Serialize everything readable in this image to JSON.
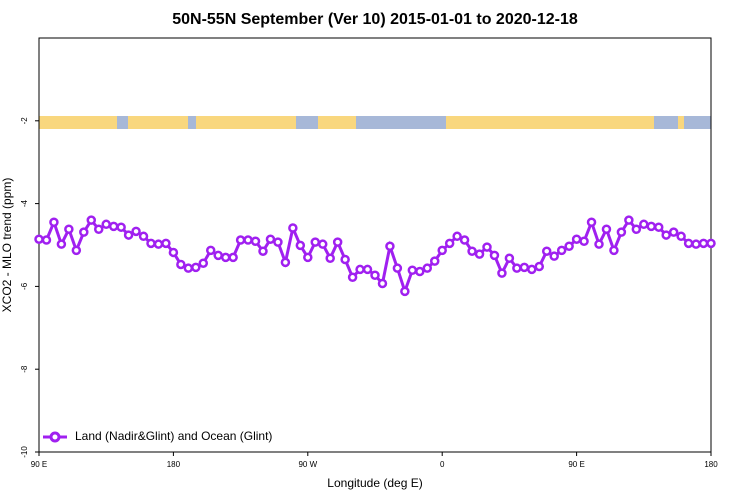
{
  "chart_data": {
    "type": "line",
    "title": "50N-55N September (Ver 10)   2015-01-01 to 2020-12-18",
    "x_label": "Longitude (deg E)",
    "y_label": "XCO2 - MLO trend (ppm)",
    "x": [
      90,
      95,
      100,
      105,
      110,
      115,
      120,
      125,
      130,
      135,
      140,
      145,
      150,
      155,
      160,
      165,
      170,
      175,
      180,
      185,
      190,
      195,
      200,
      205,
      210,
      215,
      220,
      225,
      230,
      235,
      240,
      245,
      250,
      255,
      260,
      265,
      270,
      275,
      280,
      285,
      290,
      295,
      300,
      305,
      310,
      315,
      320,
      325,
      330,
      335,
      340,
      345,
      350,
      355,
      360,
      365,
      370,
      375,
      380,
      385,
      390,
      395,
      400,
      405,
      410,
      415,
      420,
      425,
      430,
      435,
      440,
      445,
      450,
      455,
      460,
      465,
      470,
      475,
      480,
      485,
      490,
      495,
      500,
      505,
      510,
      515,
      520,
      525,
      530,
      535,
      540
    ],
    "series": [
      {
        "name": "Land (Nadir&Glint) and Ocean (Glint)",
        "color": "#a020f0",
        "values": [
          -4.86,
          -4.88,
          -4.45,
          -4.98,
          -4.62,
          -5.13,
          -4.69,
          -4.4,
          -4.62,
          -4.5,
          -4.55,
          -4.57,
          -4.76,
          -4.67,
          -4.79,
          -4.96,
          -4.98,
          -4.96,
          -5.18,
          -5.47,
          -5.56,
          -5.54,
          -5.44,
          -5.13,
          -5.25,
          -5.3,
          -5.3,
          -4.88,
          -4.88,
          -4.91,
          -5.15,
          -4.86,
          -4.93,
          -5.42,
          -4.59,
          -5.01,
          -5.3,
          -4.93,
          -4.98,
          -5.32,
          -4.93,
          -5.35,
          -5.78,
          -5.59,
          -5.59,
          -5.73,
          -5.93,
          -5.03,
          -5.56,
          -6.12,
          -5.61,
          -5.64,
          -5.56,
          -5.39,
          -5.13,
          -4.96,
          -4.79,
          -4.88,
          -5.15,
          -5.22,
          -5.05,
          -5.25,
          -5.68,
          -5.32,
          -5.56,
          -5.54,
          -5.59,
          -5.52,
          -5.15,
          -5.27,
          -5.13,
          -5.03,
          -4.86,
          -4.91,
          -4.45,
          -4.98,
          -4.62,
          -5.13,
          -4.69,
          -4.4,
          -4.62,
          -4.5,
          -4.55,
          -4.57,
          -4.76,
          -4.69,
          -4.79,
          -4.96,
          -4.98,
          -4.96,
          -4.96
        ]
      }
    ],
    "xlim": [
      90,
      540
    ],
    "xticks": [
      {
        "value": 90,
        "label": "90 E"
      },
      180,
      {
        "value": 270,
        "label": "90 W"
      },
      {
        "value": 360,
        "label": "0"
      },
      {
        "value": 450,
        "label": "90 E"
      },
      {
        "value": 540,
        "label": "180"
      }
    ],
    "ylim": [
      -10,
      0
    ],
    "yticks": [
      -10,
      -8,
      -6,
      -4,
      -2
    ],
    "legend": "bottom-left"
  }
}
